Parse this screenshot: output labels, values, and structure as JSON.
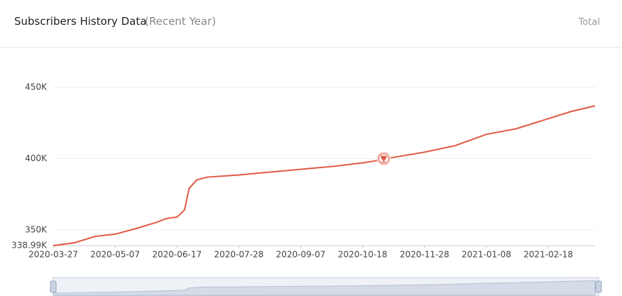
{
  "header": {
    "title": "Subscribers History Data",
    "subtitle": "(Recent Year)",
    "action": "Total"
  },
  "chart_data": {
    "type": "line",
    "x": [
      "2020-03-27",
      "2020-04-10",
      "2020-04-24",
      "2020-05-07",
      "2020-05-21",
      "2020-06-04",
      "2020-06-10",
      "2020-06-17",
      "2020-06-22",
      "2020-06-25",
      "2020-06-30",
      "2020-07-07",
      "2020-07-28",
      "2020-08-17",
      "2020-09-07",
      "2020-09-28",
      "2020-10-18",
      "2020-10-30",
      "2020-11-08",
      "2020-11-28",
      "2020-12-18",
      "2021-01-08",
      "2021-01-28",
      "2021-02-18",
      "2021-03-05",
      "2021-03-21"
    ],
    "series": [
      {
        "name": "Subscribers",
        "color": "#e05a47",
        "values": [
          339000,
          341000,
          345500,
          347000,
          351000,
          355500,
          358000,
          359000,
          364000,
          379000,
          385000,
          387000,
          388500,
          390500,
          392500,
          394500,
          397000,
          399000,
          401000,
          404500,
          409000,
          417000,
          421000,
          428000,
          433000,
          437000
        ]
      }
    ],
    "milestone": {
      "x": "2020-11-01",
      "value": 400000
    },
    "xlim": [
      "2020-03-27",
      "2021-03-21"
    ],
    "xticks": [
      "2020-03-27",
      "2020-05-07",
      "2020-06-17",
      "2020-07-28",
      "2020-09-07",
      "2020-10-18",
      "2020-11-28",
      "2021-01-08",
      "2021-02-18"
    ],
    "ylim": [
      338990,
      450000
    ],
    "yticks": [
      {
        "value": 338990,
        "label": "338.99K"
      },
      {
        "value": 350000,
        "label": "350K"
      },
      {
        "value": 400000,
        "label": "400K"
      },
      {
        "value": 450000,
        "label": "450K"
      }
    ],
    "grid": true
  }
}
